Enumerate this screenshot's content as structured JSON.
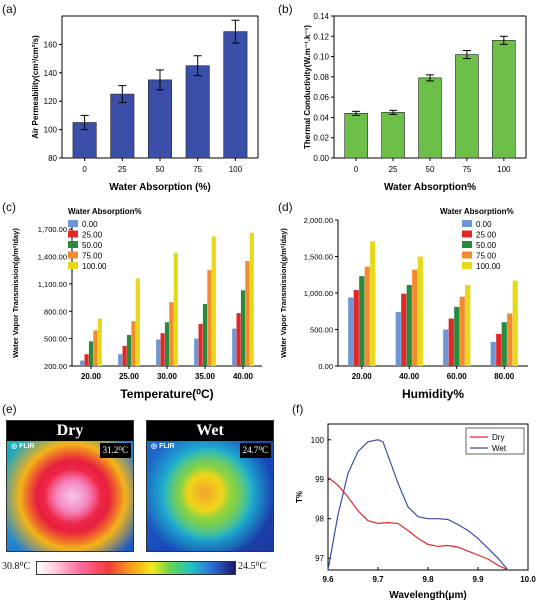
{
  "panels": {
    "a": "(a)",
    "b": "(b)",
    "c": "(c)",
    "d": "(d)",
    "e": "(e)",
    "f": "(f)"
  },
  "thermal": {
    "dry_title": "Dry",
    "wet_title": "Wet",
    "flir_text": "FLIR",
    "dry_temp": "31.2⁰C",
    "wet_temp": "24.7⁰C",
    "scale_min": "30.8⁰C",
    "scale_max": "24.5⁰C"
  },
  "chart_data": [
    {
      "id": "a",
      "type": "bar",
      "categories": [
        "0",
        "25",
        "50",
        "75",
        "100"
      ],
      "values": [
        105,
        125,
        135,
        145,
        169
      ],
      "errors": [
        5,
        6,
        7,
        7,
        8
      ],
      "xlabel": "Water Absorption (%)",
      "ylabel": "Air Permeability(cm³/cm²/s)",
      "ylim": [
        80,
        180
      ],
      "yticks": [
        "80",
        "100",
        "120",
        "140",
        "160"
      ],
      "color": "#3b4fa8"
    },
    {
      "id": "b",
      "type": "bar",
      "categories": [
        "0",
        "25",
        "50",
        "75",
        "100"
      ],
      "values": [
        0.044,
        0.045,
        0.079,
        0.102,
        0.116
      ],
      "errors": [
        0.002,
        0.002,
        0.003,
        0.004,
        0.004
      ],
      "xlabel": "Water Absorption%",
      "ylabel": "Thermal Conductivity(W.m⁻¹.k⁻¹)",
      "ylim": [
        0,
        0.14
      ],
      "yticks": [
        "0.00",
        "0.02",
        "0.04",
        "0.06",
        "0.08",
        "0.10",
        "0.12",
        "0.14"
      ],
      "color": "#6cc04a"
    },
    {
      "id": "c",
      "type": "bar",
      "categories": [
        "20.00",
        "25.00",
        "30.00",
        "35.00",
        "40.00"
      ],
      "series": [
        {
          "name": "0.00",
          "values": [
            260,
            330,
            490,
            500,
            610
          ],
          "color": "#6f95d4"
        },
        {
          "name": "25.00",
          "values": [
            330,
            420,
            560,
            660,
            780
          ],
          "color": "#e02828"
        },
        {
          "name": "50.00",
          "values": [
            470,
            540,
            680,
            880,
            1030
          ],
          "color": "#2a8a3c"
        },
        {
          "name": "75.00",
          "values": [
            590,
            690,
            900,
            1250,
            1350
          ],
          "color": "#f28b30"
        },
        {
          "name": "100.00",
          "values": [
            720,
            1160,
            1440,
            1620,
            1660
          ],
          "color": "#e8d81a"
        }
      ],
      "legend_title": "Water Absorption%",
      "legend_position": "top-left",
      "xlabel": "Temperature(⁰C)",
      "ylabel": "Water Vapor Transmission(g/m²/day)",
      "ylim": [
        200,
        1800
      ],
      "yticks": [
        "200.00",
        "500.00",
        "800.00",
        "1,100.00",
        "1,400.00",
        "1,700.00"
      ]
    },
    {
      "id": "d",
      "type": "bar",
      "categories": [
        "20.00",
        "40.00",
        "60.00",
        "80.00"
      ],
      "series": [
        {
          "name": "0.00",
          "values": [
            940,
            740,
            500,
            330
          ],
          "color": "#6f95d4"
        },
        {
          "name": "25.00",
          "values": [
            1040,
            990,
            650,
            440
          ],
          "color": "#e02828"
        },
        {
          "name": "50.00",
          "values": [
            1230,
            1110,
            810,
            600
          ],
          "color": "#2a8a3c"
        },
        {
          "name": "75.00",
          "values": [
            1360,
            1320,
            950,
            720
          ],
          "color": "#f28b30"
        },
        {
          "name": "100.00",
          "values": [
            1710,
            1500,
            1110,
            1170
          ],
          "color": "#e8d81a"
        }
      ],
      "legend_title": "Water Absorption%",
      "legend_position": "top-right",
      "xlabel": "Humidity%",
      "ylabel": "Water Vapor Transmission(g/m²/day)",
      "ylim": [
        0,
        2000
      ],
      "yticks": [
        "0.00",
        "500.00",
        "1,000.00",
        "1,500.00",
        "2,000.00"
      ]
    },
    {
      "id": "f",
      "type": "line",
      "series": [
        {
          "name": "Dry",
          "color": "#e02828",
          "x": [
            9.6,
            9.62,
            9.64,
            9.66,
            9.68,
            9.7,
            9.72,
            9.74,
            9.76,
            9.78,
            9.8,
            9.82,
            9.84,
            9.86,
            9.88,
            9.9,
            9.92,
            9.94,
            9.96
          ],
          "y": [
            99.05,
            98.85,
            98.55,
            98.2,
            97.95,
            97.88,
            97.9,
            97.88,
            97.7,
            97.5,
            97.35,
            97.3,
            97.32,
            97.28,
            97.18,
            97.08,
            96.98,
            96.82,
            96.7
          ]
        },
        {
          "name": "Wet",
          "color": "#3b4fa8",
          "x": [
            9.6,
            9.61,
            9.62,
            9.64,
            9.66,
            9.68,
            9.7,
            9.71,
            9.72,
            9.74,
            9.76,
            9.78,
            9.8,
            9.82,
            9.84,
            9.86,
            9.88,
            9.9,
            9.92,
            9.94,
            9.96
          ],
          "y": [
            96.7,
            97.4,
            98.1,
            99.15,
            99.7,
            99.95,
            100.0,
            99.95,
            99.6,
            98.9,
            98.3,
            98.05,
            98.0,
            98.0,
            97.98,
            97.85,
            97.7,
            97.5,
            97.25,
            97.0,
            96.7
          ]
        }
      ],
      "xlabel": "Wavelength(μm)",
      "ylabel": "T%",
      "xlim": [
        9.6,
        10.0
      ],
      "ylim": [
        96.7,
        100.4
      ],
      "xticks": [
        "9.6",
        "9.7",
        "9.8",
        "9.9",
        "10.0"
      ],
      "yticks": [
        "97",
        "98",
        "99",
        "100"
      ],
      "legend_position": "top-right"
    }
  ]
}
